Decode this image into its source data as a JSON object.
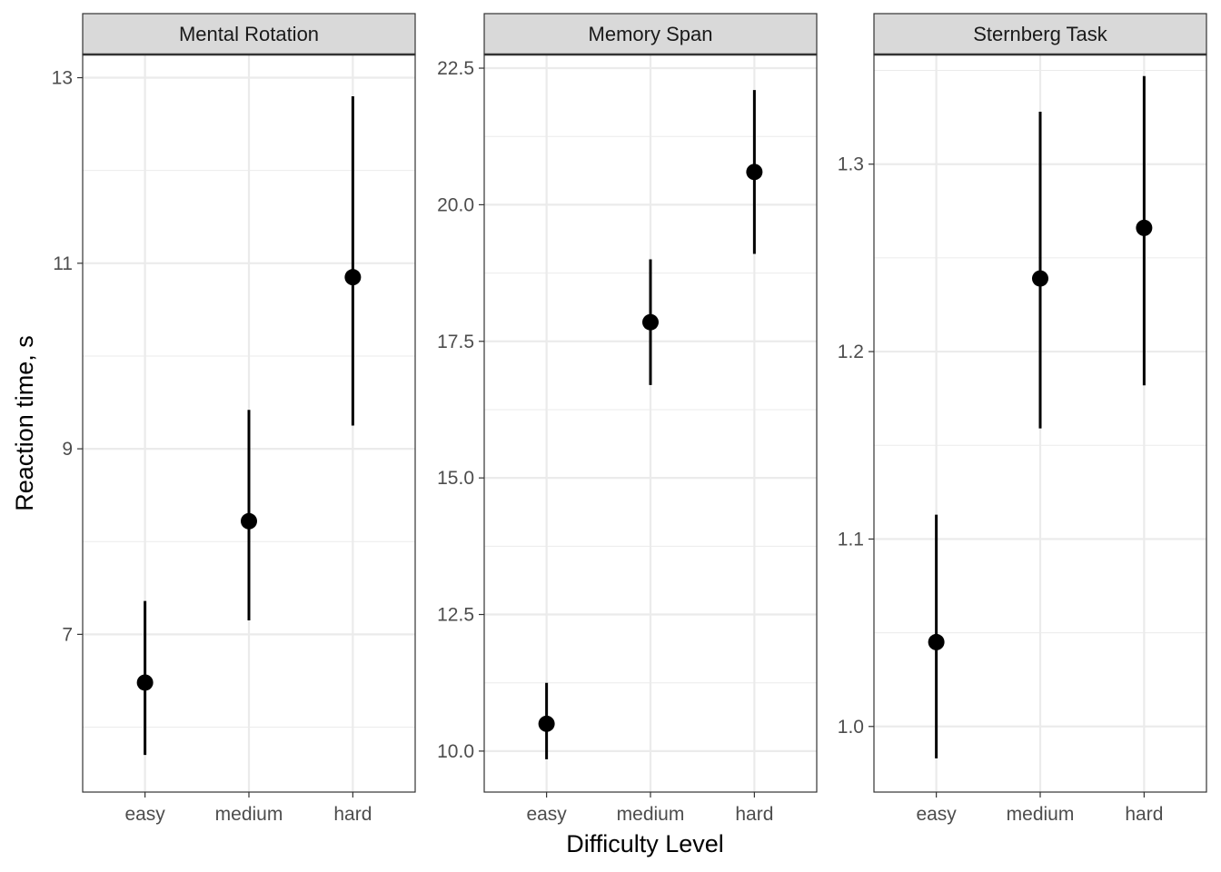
{
  "chart_data": {
    "type": "scatter",
    "style": "point-range facets",
    "xlabel": "Difficulty Level",
    "ylabel": "Reaction time, s",
    "categories": [
      "easy",
      "medium",
      "hard"
    ],
    "panels": [
      {
        "title": "Mental Rotation",
        "ylim": [
          5.3,
          13.25
        ],
        "yticks": [
          7,
          9,
          11,
          13
        ],
        "ytick_labels": [
          "7",
          "9",
          "11",
          "13"
        ],
        "minor_yticks": [
          6,
          8,
          10,
          12
        ],
        "points": [
          {
            "x": "easy",
            "y": 6.48,
            "lower": 5.7,
            "upper": 7.36
          },
          {
            "x": "medium",
            "y": 8.22,
            "lower": 7.15,
            "upper": 9.42
          },
          {
            "x": "hard",
            "y": 10.85,
            "lower": 9.25,
            "upper": 12.8
          }
        ]
      },
      {
        "title": "Memory Span",
        "ylim": [
          9.25,
          22.75
        ],
        "yticks": [
          10.0,
          12.5,
          15.0,
          17.5,
          20.0,
          22.5
        ],
        "ytick_labels": [
          "10.0",
          "12.5",
          "15.0",
          "17.5",
          "20.0",
          "22.5"
        ],
        "minor_yticks": [
          11.25,
          13.75,
          16.25,
          18.75,
          21.25
        ],
        "points": [
          {
            "x": "easy",
            "y": 10.5,
            "lower": 9.85,
            "upper": 11.25
          },
          {
            "x": "medium",
            "y": 17.85,
            "lower": 16.7,
            "upper": 19.0
          },
          {
            "x": "hard",
            "y": 20.6,
            "lower": 19.1,
            "upper": 22.1
          }
        ]
      },
      {
        "title": "Sternberg Task",
        "ylim": [
          0.965,
          1.3585
        ],
        "yticks": [
          1.0,
          1.1,
          1.2,
          1.3
        ],
        "ytick_labels": [
          "1.0",
          "1.1",
          "1.2",
          "1.3"
        ],
        "minor_yticks": [
          1.05,
          1.15,
          1.25,
          1.35
        ],
        "points": [
          {
            "x": "easy",
            "y": 1.045,
            "lower": 0.983,
            "upper": 1.113
          },
          {
            "x": "medium",
            "y": 1.239,
            "lower": 1.159,
            "upper": 1.328
          },
          {
            "x": "hard",
            "y": 1.266,
            "lower": 1.182,
            "upper": 1.347
          }
        ]
      }
    ],
    "grid": true,
    "legend": "none",
    "colors": {
      "point": "#000000",
      "strip_background": "#d9d9d9",
      "grid": "#ebebeb",
      "panel_border": "#333333"
    }
  }
}
